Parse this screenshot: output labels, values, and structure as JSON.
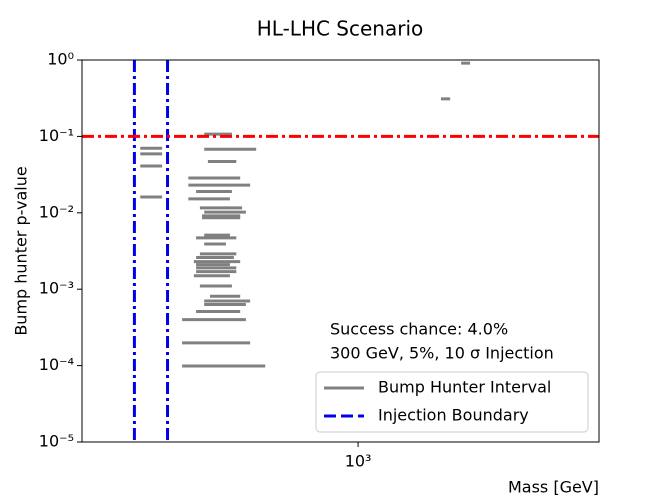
{
  "chart_data": {
    "type": "interval",
    "title": "HL-LHC Scenario",
    "x_label": "Mass [GeV]",
    "y_label": "Bump hunter p-value",
    "x_log": true,
    "y_log": true,
    "xlim": [
      444,
      2031
    ],
    "ylim": [
      1e-05,
      1
    ],
    "xticks": [
      {
        "value": 1000,
        "label": "10³"
      }
    ],
    "yticks": [
      {
        "value": 1e-05,
        "label": "10⁻⁵"
      },
      {
        "value": 0.0001,
        "label": "10⁻⁴"
      },
      {
        "value": 0.001,
        "label": "10⁻³"
      },
      {
        "value": 0.01,
        "label": "10⁻²"
      },
      {
        "value": 0.1,
        "label": "10⁻¹"
      },
      {
        "value": 1,
        "label": "10⁰"
      }
    ],
    "annotations": [
      "Success chance: 4.0%",
      "300 GeV, 5%, 10 σ Injection"
    ],
    "threshold": {
      "value": 0.1,
      "color": "#ff0000"
    },
    "series": [
      {
        "name": "Bump Hunter Interval",
        "color": "#808080",
        "xmin": [
          1354,
          1276,
          636,
          527,
          636,
          527,
          643,
          527,
          607,
          607,
          621,
          527,
          607,
          628,
          636,
          632,
          632,
          636,
          621,
          636,
          628,
          621,
          617,
          621,
          621,
          621,
          617,
          628,
          647,
          636,
          636,
          621,
          596,
          596,
          596
        ],
        "xmax": [
          1390,
          1311,
          690,
          562,
          741,
          562,
          699,
          562,
          707,
          728,
          690,
          562,
          686,
          711,
          719,
          707,
          707,
          686,
          699,
          678,
          699,
          694,
          707,
          686,
          699,
          699,
          686,
          690,
          707,
          728,
          719,
          707,
          719,
          728,
          761
        ],
        "values": [
          0.91,
          0.31,
          0.107,
          0.07,
          0.068,
          0.059,
          0.047,
          0.041,
          0.0285,
          0.023,
          0.019,
          0.0161,
          0.0152,
          0.0116,
          0.0102,
          0.0091,
          0.0086,
          0.0051,
          0.0047,
          0.0039,
          0.0029,
          0.0026,
          0.0023,
          0.0021,
          0.0019,
          0.0017,
          0.0015,
          0.0011,
          0.00081,
          0.0007,
          0.00063,
          0.00051,
          0.0004,
          0.000198,
          9.89e-05
        ]
      },
      {
        "name": "Injection Boundary",
        "color": "#0000ee",
        "x": [
          518,
          571
        ]
      }
    ],
    "legend": "lower right"
  }
}
